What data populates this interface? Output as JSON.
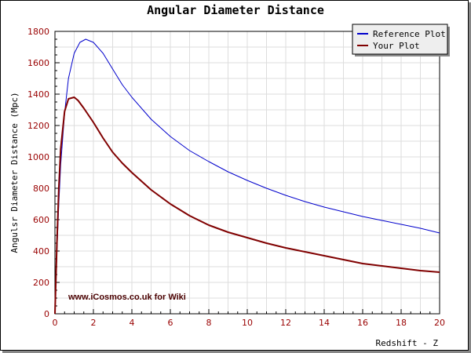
{
  "chart_data": {
    "type": "line",
    "title": "Angular Diameter Distance",
    "xlabel": "Redshift - Z",
    "ylabel": "Angulsr Diameter Distance (Mpc)",
    "xlim": [
      0,
      20
    ],
    "ylim": [
      0,
      1800
    ],
    "xticks": [
      0,
      2,
      4,
      6,
      8,
      10,
      12,
      14,
      16,
      18,
      20
    ],
    "yticks": [
      0,
      200,
      400,
      600,
      800,
      1000,
      1200,
      1400,
      1600,
      1800
    ],
    "grid": true,
    "legend_position": "top-right",
    "annotation": "www.iCosmos.co.uk for Wiki",
    "series": [
      {
        "name": "Reference Plot",
        "color": "#0000cc",
        "x": [
          0,
          0.1,
          0.2,
          0.3,
          0.5,
          0.7,
          1.0,
          1.3,
          1.6,
          2.0,
          2.5,
          3,
          3.5,
          4,
          5,
          6,
          7,
          8,
          9,
          10,
          11,
          12,
          13,
          14,
          15,
          16,
          17,
          18,
          19,
          20
        ],
        "y": [
          0,
          400,
          700,
          950,
          1280,
          1500,
          1660,
          1730,
          1750,
          1730,
          1660,
          1560,
          1460,
          1380,
          1240,
          1130,
          1040,
          970,
          905,
          850,
          800,
          755,
          715,
          680,
          650,
          620,
          595,
          570,
          545,
          515
        ]
      },
      {
        "name": "Your Plot",
        "color": "#800000",
        "x": [
          0,
          0.1,
          0.2,
          0.3,
          0.5,
          0.7,
          1.0,
          1.2,
          1.5,
          2.0,
          2.5,
          3,
          3.5,
          4,
          5,
          6,
          7,
          8,
          9,
          10,
          11,
          12,
          13,
          14,
          15,
          16,
          17,
          18,
          19,
          20
        ],
        "y": [
          0,
          450,
          800,
          1050,
          1290,
          1370,
          1380,
          1360,
          1310,
          1220,
          1120,
          1030,
          960,
          900,
          790,
          700,
          625,
          565,
          520,
          485,
          450,
          420,
          395,
          370,
          345,
          320,
          305,
          290,
          275,
          265
        ]
      }
    ]
  }
}
